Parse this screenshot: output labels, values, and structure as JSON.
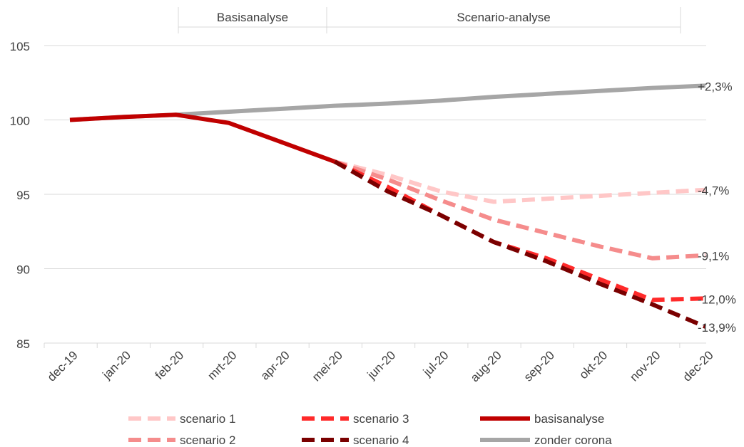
{
  "chart_data": {
    "type": "line",
    "title": "",
    "xlabel": "",
    "ylabel": "",
    "categories": [
      "dec-19",
      "jan-20",
      "feb-20",
      "mrt-20",
      "apr-20",
      "mei-20",
      "jun-20",
      "jul-20",
      "aug-20",
      "sep-20",
      "okt-20",
      "nov-20",
      "dec-20"
    ],
    "ylim": [
      85,
      105
    ],
    "yticks": [
      85,
      90,
      95,
      100,
      105
    ],
    "grid": true,
    "legend_position": "bottom",
    "period_labels": [
      {
        "label": "Basisanalyse",
        "from": "feb-20",
        "to": "mei-20"
      },
      {
        "label": "Scenario-analyse",
        "from": "mei-20",
        "to": "dec-20"
      }
    ],
    "series": [
      {
        "name": "zonder corona",
        "color": "#a6a6a6",
        "dash": false,
        "values": [
          100.0,
          100.2,
          100.35,
          100.55,
          100.75,
          100.95,
          101.1,
          101.3,
          101.55,
          101.75,
          101.95,
          102.15,
          102.3
        ],
        "end_label": "+2,3%"
      },
      {
        "name": "basisanalyse",
        "color": "#c00000",
        "dash": false,
        "values": [
          100.0,
          100.2,
          100.35,
          99.8,
          98.5,
          97.2,
          null,
          null,
          null,
          null,
          null,
          null,
          null
        ]
      },
      {
        "name": "scenario 1",
        "color": "#ffc7c7",
        "dash": true,
        "values": [
          null,
          null,
          null,
          null,
          null,
          97.2,
          96.3,
          95.2,
          94.5,
          94.7,
          94.9,
          95.1,
          95.3
        ],
        "end_label": "-4,7%"
      },
      {
        "name": "scenario 2",
        "color": "#f58c8c",
        "dash": true,
        "values": [
          null,
          null,
          null,
          null,
          null,
          97.2,
          96.0,
          94.6,
          93.3,
          92.4,
          91.5,
          90.7,
          90.9
        ],
        "end_label": "-9,1%"
      },
      {
        "name": "scenario 3",
        "color": "#ff2a2a",
        "dash": true,
        "values": [
          null,
          null,
          null,
          null,
          null,
          97.2,
          95.5,
          93.6,
          91.8,
          90.7,
          89.3,
          87.9,
          88.0
        ],
        "end_label": "-12,0%"
      },
      {
        "name": "scenario 4",
        "color": "#7a0000",
        "dash": true,
        "values": [
          null,
          null,
          null,
          null,
          null,
          97.2,
          95.2,
          93.6,
          91.8,
          90.5,
          89.0,
          87.6,
          86.1
        ],
        "end_label": "-13,9%"
      }
    ],
    "legend_order": [
      "scenario 1",
      "scenario 3",
      "basisanalyse",
      "scenario 2",
      "scenario 4",
      "zonder corona"
    ]
  }
}
